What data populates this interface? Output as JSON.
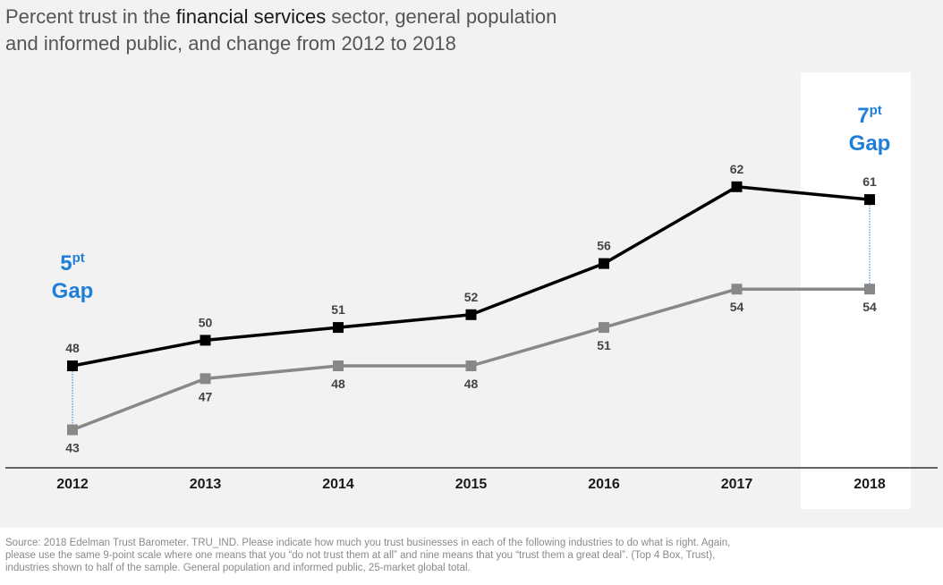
{
  "title": {
    "prefix": "Percent trust in the ",
    "highlight": "financial services",
    "suffix": " sector, general population",
    "line2": "and informed public, and change from 2012 to 2018"
  },
  "chart_data": {
    "type": "line",
    "x": [
      "2012",
      "2013",
      "2014",
      "2015",
      "2016",
      "2017",
      "2018"
    ],
    "series": [
      {
        "values": [
          48,
          50,
          51,
          52,
          56,
          62,
          61
        ],
        "color": "#000000"
      },
      {
        "values": [
          43,
          47,
          48,
          48,
          51,
          54,
          54
        ],
        "color": "#888888"
      }
    ],
    "highlight_category": "2018",
    "annotations": [
      {
        "category": "2012",
        "number": "5",
        "superscript": "pt",
        "word": "Gap"
      },
      {
        "category": "2018",
        "number": "7",
        "superscript": "pt",
        "word": "Gap"
      }
    ],
    "accent_color": "#1f7fd8",
    "grid": false
  },
  "source": {
    "line1": "Source: 2018 Edelman Trust Barometer. TRU_IND. Please indicate how much you trust businesses in each of the following industries to do what is right. Again,",
    "line2": "please use the same 9-point scale where one means that you “do not trust them at all” and nine means that you “trust them a great deal”. (Top 4 Box, Trust),",
    "line3": "industries shown to half of the sample. General population and informed public, 25-market global total."
  }
}
